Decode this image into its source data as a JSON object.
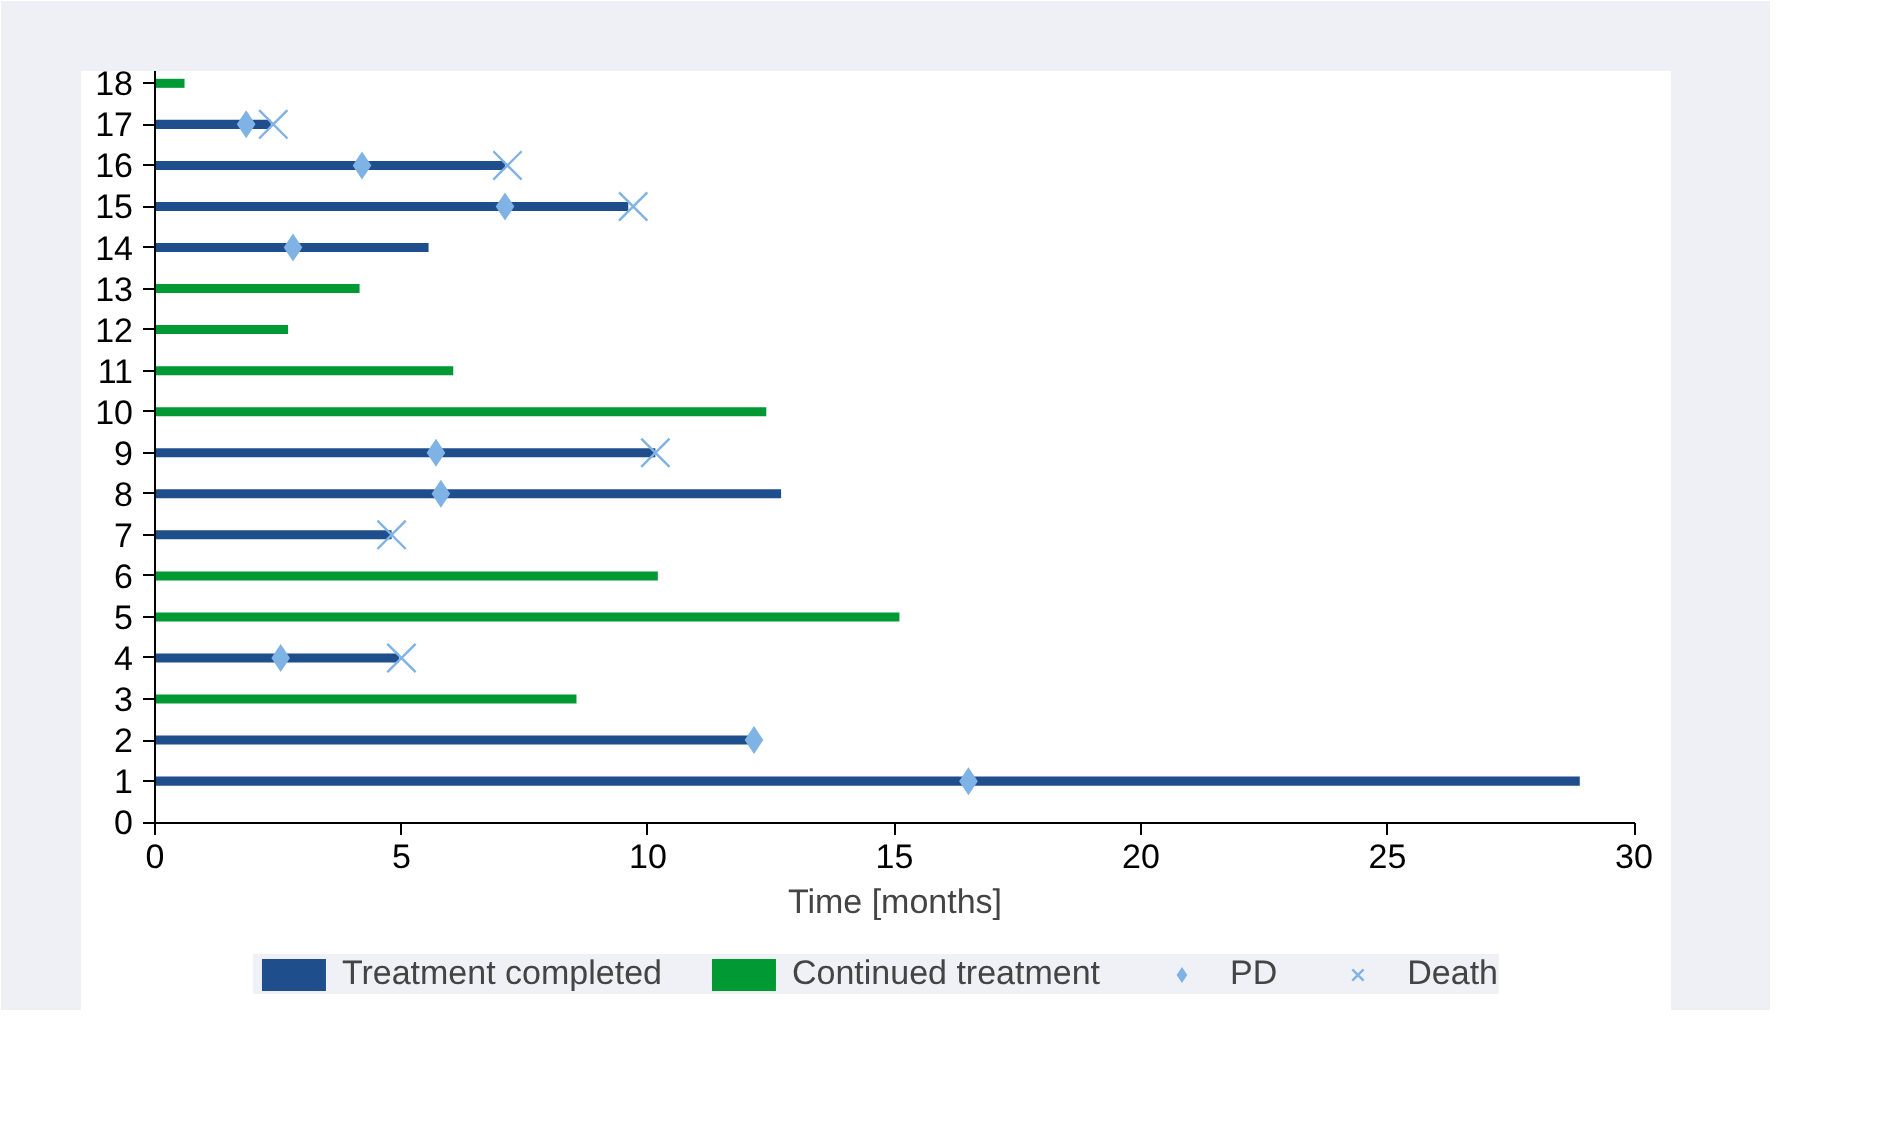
{
  "chart_data": {
    "type": "bar",
    "orientation": "horizontal",
    "stacked": true,
    "xlabel": "Time [months]",
    "categories": [
      "18",
      "17",
      "16",
      "15",
      "14",
      "13",
      "12",
      "11",
      "10",
      "9",
      "8",
      "7",
      "6",
      "5",
      "4",
      "3",
      "2",
      "1",
      "0"
    ],
    "xlim": [
      0,
      30
    ],
    "xticks": [
      0,
      5,
      10,
      15,
      20,
      25,
      30
    ],
    "legend": "bottom",
    "grid": false,
    "series": [
      {
        "name": "Treatment completed",
        "color": "#1f4e8c",
        "values": [
          null,
          2.35,
          7.1,
          9.6,
          5.55,
          null,
          null,
          null,
          null,
          10.15,
          12.7,
          4.8,
          null,
          null,
          4.95,
          null,
          12.15,
          28.9,
          null
        ]
      },
      {
        "name": "Continued treatment",
        "color": "#009933",
        "values": [
          0.6,
          null,
          null,
          null,
          null,
          4.15,
          2.7,
          6.05,
          12.4,
          null,
          null,
          null,
          10.2,
          15.1,
          null,
          8.55,
          null,
          null,
          null
        ]
      },
      {
        "name": "PD",
        "type": "scatter",
        "marker": "diamond",
        "color": "#7fb2e5",
        "x": [
          "17",
          "16",
          "15",
          "14",
          "9",
          "8",
          "4",
          "2",
          "1"
        ],
        "values": [
          1.85,
          4.2,
          7.1,
          2.8,
          5.7,
          5.8,
          2.55,
          12.15,
          16.5
        ]
      },
      {
        "name": "Death",
        "type": "scatter",
        "marker": "cross",
        "color": "#7fb2e5",
        "x": [
          "17",
          "16",
          "15",
          "9",
          "7",
          "4"
        ],
        "values": [
          2.4,
          7.15,
          9.7,
          10.15,
          4.8,
          5.0
        ]
      }
    ]
  }
}
